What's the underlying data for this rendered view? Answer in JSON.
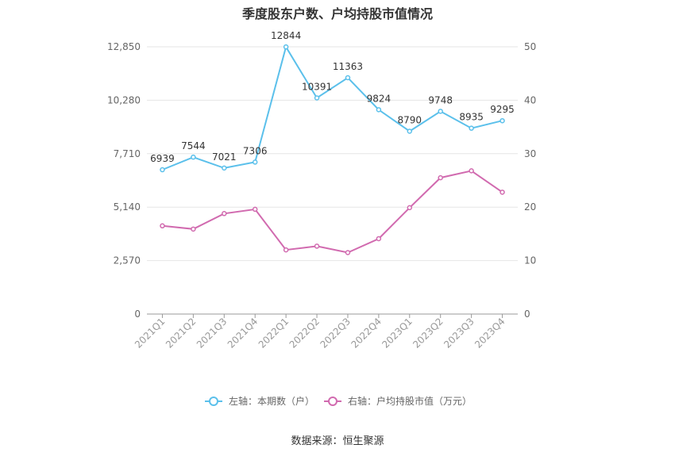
{
  "title": "季度股东户数、户均持股市值情况",
  "source": "数据来源：恒生聚源",
  "chart_data": {
    "type": "line",
    "categories": [
      "2021Q1",
      "2021Q2",
      "2021Q3",
      "2021Q4",
      "2022Q1",
      "2022Q2",
      "2022Q3",
      "2022Q4",
      "2023Q1",
      "2023Q2",
      "2023Q3",
      "2023Q4"
    ],
    "y_left": {
      "ticks": [
        "0",
        "2,570",
        "5,140",
        "7,710",
        "10,280",
        "12,850"
      ],
      "ylim": [
        0,
        12850
      ]
    },
    "y_right": {
      "ticks": [
        "0",
        "10",
        "20",
        "30",
        "40",
        "50"
      ],
      "ylim": [
        0,
        50
      ]
    },
    "grid": true,
    "legend_position": "bottom",
    "series": [
      {
        "name": "左轴：本期数（户）",
        "axis": "left",
        "color": "#5bc0eb",
        "values": [
          6939,
          7544,
          7021,
          7306,
          12844,
          10391,
          11363,
          9824,
          8790,
          9748,
          8935,
          9295
        ],
        "labels": [
          "6939",
          "7544",
          "7021",
          "7306",
          "12844",
          "10391",
          "11363",
          "9824",
          "8790",
          "9748",
          "8935",
          "9295"
        ]
      },
      {
        "name": "右轴：户均持股市值（万元）",
        "axis": "right",
        "color": "#d16aaf",
        "values": [
          16.5,
          15.9,
          18.8,
          19.6,
          12.0,
          12.7,
          11.5,
          14.1,
          19.9,
          25.5,
          26.8,
          22.8
        ]
      }
    ]
  }
}
